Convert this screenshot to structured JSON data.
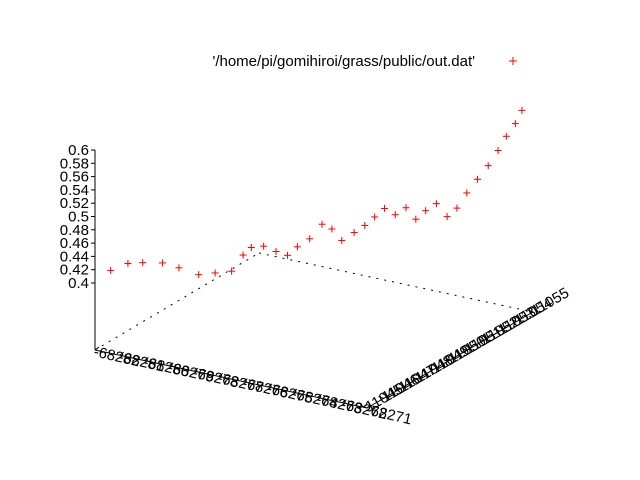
{
  "chart_data": {
    "type": "scatter",
    "title": "",
    "legend": {
      "label": "'/home/pi/gomihiroi/grass/public/out.dat'",
      "marker": "+",
      "placement": "top-right"
    },
    "series_color": "#ff0000",
    "z_ticks": [
      "0.4",
      "0.42",
      "0.44",
      "0.46",
      "0.48",
      "0.5",
      "0.52",
      "0.54",
      "0.56",
      "0.58",
      "0.6"
    ],
    "x_ticks": [
      "-68282",
      "-68281",
      "-68280",
      "-68279",
      "-68278",
      "-68277",
      "-68276",
      "-68275",
      "-68274",
      "-68273",
      "-68272",
      "-68271"
    ],
    "y_ticks": [
      "11045",
      "11046",
      "11047",
      "11048",
      "11049",
      "11050",
      "11051",
      "11052",
      "11053",
      "11054",
      "11055"
    ],
    "xlim": [
      -68282,
      -68271
    ],
    "ylim": [
      11045,
      11055
    ],
    "zlim": [
      0.4,
      0.6
    ],
    "grid": false,
    "points": [
      [
        -68281.5,
        11054.8,
        0.42
      ],
      [
        -68281.0,
        11054.5,
        0.43
      ],
      [
        -68280.6,
        11054.2,
        0.43
      ],
      [
        -68280.0,
        11053.9,
        0.43
      ],
      [
        -68279.6,
        11053.5,
        0.42
      ],
      [
        -68279.0,
        11053.2,
        0.41
      ],
      [
        -68278.6,
        11052.8,
        0.41
      ],
      [
        -68278.2,
        11052.4,
        0.41
      ],
      [
        -68278.0,
        11052.0,
        0.43
      ],
      [
        -68277.8,
        11051.8,
        0.44
      ],
      [
        -68277.5,
        11051.5,
        0.44
      ],
      [
        -68277.2,
        11051.2,
        0.43
      ],
      [
        -68277.0,
        11050.8,
        0.42
      ],
      [
        -68276.8,
        11050.5,
        0.43
      ],
      [
        -68276.5,
        11050.2,
        0.44
      ],
      [
        -68276.2,
        11049.9,
        0.46
      ],
      [
        -68276.0,
        11049.6,
        0.45
      ],
      [
        -68275.8,
        11049.3,
        0.43
      ],
      [
        -68275.5,
        11049.0,
        0.44
      ],
      [
        -68275.2,
        11048.8,
        0.45
      ],
      [
        -68275.0,
        11048.5,
        0.46
      ],
      [
        -68274.8,
        11048.2,
        0.47
      ],
      [
        -68274.5,
        11048.0,
        0.46
      ],
      [
        -68274.2,
        11047.8,
        0.47
      ],
      [
        -68274.0,
        11047.5,
        0.45
      ],
      [
        -68273.8,
        11047.2,
        0.46
      ],
      [
        -68273.5,
        11047.0,
        0.47
      ],
      [
        -68273.2,
        11046.8,
        0.45
      ],
      [
        -68273.0,
        11046.5,
        0.46
      ],
      [
        -68272.8,
        11046.2,
        0.48
      ],
      [
        -68272.5,
        11046.0,
        0.5
      ],
      [
        -68272.2,
        11045.8,
        0.52
      ],
      [
        -68272.0,
        11045.5,
        0.54
      ],
      [
        -68271.8,
        11045.3,
        0.56
      ],
      [
        -68271.5,
        11045.2,
        0.58
      ],
      [
        -68271.3,
        11045.1,
        0.6
      ]
    ]
  }
}
